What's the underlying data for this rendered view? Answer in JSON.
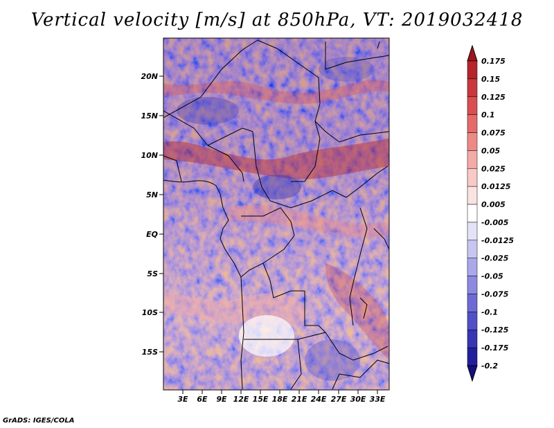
{
  "title": "Vertical velocity [m/s] at 850hPa, VT: 2019032418",
  "credit": "GrADS: IGES/COLA",
  "lat_labels": [
    "20N",
    "15N",
    "10N",
    "5N",
    "EQ",
    "5S",
    "10S",
    "15S"
  ],
  "lon_labels": [
    "3E",
    "6E",
    "9E",
    "12E",
    "15E",
    "18E",
    "21E",
    "24E",
    "27E",
    "30E",
    "33E"
  ],
  "colorbar": {
    "labels": [
      "0.175",
      "0.15",
      "0.125",
      "0.1",
      "0.075",
      "0.05",
      "0.025",
      "0.0125",
      "0.005",
      "-0.005",
      "-0.0125",
      "-0.025",
      "-0.05",
      "-0.075",
      "-0.1",
      "-0.125",
      "-0.175",
      "-0.2"
    ],
    "colors": [
      "#a0151b",
      "#b5252b",
      "#c9383d",
      "#d94f51",
      "#e56b6a",
      "#ee8a86",
      "#f4aaa6",
      "#f8c9c6",
      "#fbe3e1",
      "#ffffff",
      "#e3e2f8",
      "#c8c6f1",
      "#aaa8ea",
      "#8c89e0",
      "#6e6ad4",
      "#5250c5",
      "#3836b3",
      "#221f9c",
      "#14107e"
    ]
  },
  "colors": {
    "positive": "#c0392b",
    "negative": "#3a37c2",
    "background": "#ffffff"
  }
}
